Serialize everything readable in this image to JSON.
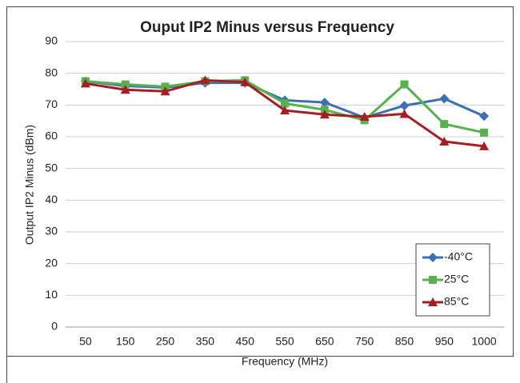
{
  "chart_data": {
    "type": "line",
    "title": "Ouput IP2 Minus versus Frequency",
    "x_label": "Frequency (MHz)",
    "y_label": "Output IP2 Minus (dBm)",
    "categories": [
      "50",
      "150",
      "250",
      "350",
      "450",
      "550",
      "650",
      "750",
      "850",
      "950",
      "1000"
    ],
    "series": [
      {
        "name": "-40°C",
        "color": "#3d6fb6",
        "marker": "diamond",
        "values": [
          77.5,
          76,
          75.5,
          77,
          77,
          71.5,
          70.8,
          66,
          69.8,
          72,
          66.5
        ]
      },
      {
        "name": "25°C",
        "color": "#58b14d",
        "marker": "square",
        "values": [
          77.5,
          76.5,
          75.8,
          77.5,
          77.8,
          70.5,
          68.5,
          65.2,
          76.5,
          64,
          61.3
        ]
      },
      {
        "name": "85°C",
        "color": "#a51e24",
        "marker": "triangle",
        "values": [
          76.8,
          74.8,
          74.3,
          77.8,
          77.2,
          68.3,
          67,
          66.3,
          67.2,
          58.5,
          57
        ]
      }
    ],
    "ylim": [
      0,
      90
    ],
    "yticks": [
      0,
      10,
      20,
      30,
      40,
      50,
      60,
      70,
      80,
      90
    ],
    "grid": true,
    "legend": "lower right"
  }
}
